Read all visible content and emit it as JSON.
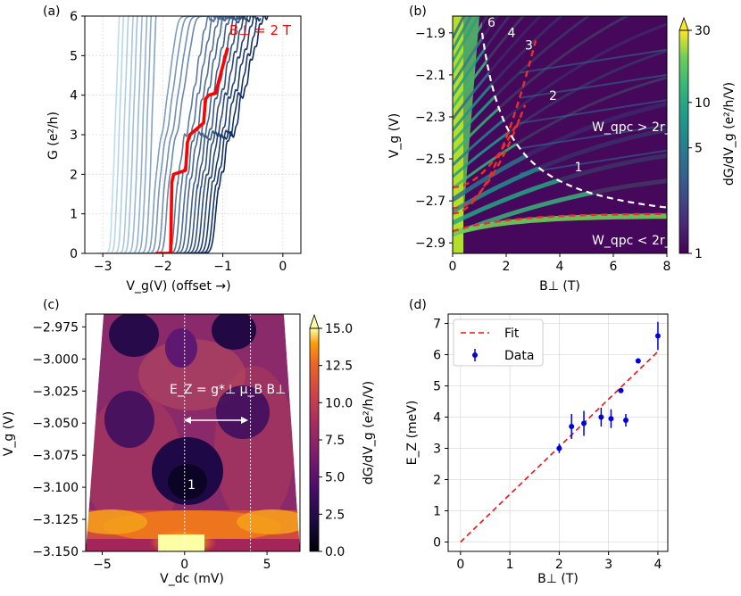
{
  "chart_data": [
    {
      "panel": "(a)",
      "type": "line",
      "xlabel": "V_g(V) (offset →)",
      "ylabel": "G (e²/h)",
      "xlim": [
        -3.3,
        0.3
      ],
      "ylim": [
        0,
        6
      ],
      "xticks": [
        "−3",
        "−2",
        "−1",
        "0"
      ],
      "xtick_values": [
        -3,
        -2,
        -1,
        0
      ],
      "yticks": [
        "0",
        "1",
        "2",
        "3",
        "4",
        "5",
        "6"
      ],
      "ytick_values": [
        0,
        1,
        2,
        3,
        4,
        5,
        6
      ],
      "annotation": "B⊥ = 2 T",
      "highlight_color": "#ff0000",
      "curve_offsets": [
        -2.85,
        -2.78,
        -2.7,
        -2.62,
        -2.55,
        -2.47,
        -2.39,
        -2.32,
        -2.24,
        -2.16,
        -2.09,
        -2.01,
        -1.94,
        -1.87,
        -1.8,
        -1.73,
        -1.66,
        -1.6,
        -1.53,
        -1.47,
        -1.41,
        -1.35,
        -1.29,
        -1.23,
        -1.17,
        -1.12
      ],
      "highlight_index": 13
    },
    {
      "panel": "(b)",
      "type": "heatmap",
      "xlabel": "B⊥ (T)",
      "ylabel": "V_g (V)",
      "xlim": [
        0,
        8
      ],
      "ylim": [
        -2.95,
        -1.82
      ],
      "xticks": [
        "0",
        "2",
        "4",
        "6",
        "8"
      ],
      "xtick_values": [
        0,
        2,
        4,
        6,
        8
      ],
      "yticks": [
        "−1.9",
        "−2.1",
        "−2.3",
        "−2.5",
        "−2.7",
        "−2.9"
      ],
      "ytick_values": [
        -1.9,
        -2.1,
        -2.3,
        -2.5,
        -2.7,
        -2.9
      ],
      "colorbar_label": "dG/dV_g (e²/h/V)",
      "colorbar_ticks": [
        "1",
        "5",
        "10",
        "30"
      ],
      "colorbar_scale": "log",
      "level_labels": [
        "6",
        "4",
        "3",
        "2",
        "1"
      ],
      "region_labels": [
        "W_qpc > 2r_c",
        "W_qpc < 2r_c"
      ],
      "boundary_color": "#ffffff",
      "fit_color": "#e8312a"
    },
    {
      "panel": "(c)",
      "type": "heatmap",
      "xlabel": "V_dc (mV)",
      "ylabel": "V_g (V)",
      "xlim": [
        -6,
        7
      ],
      "ylim": [
        -3.15,
        -2.965
      ],
      "xticks": [
        "−5",
        "0",
        "5"
      ],
      "xtick_values": [
        -5,
        0,
        5
      ],
      "yticks": [
        "−2.975",
        "−3.000",
        "−3.025",
        "−3.050",
        "−3.075",
        "−3.100",
        "−3.125",
        "−3.150"
      ],
      "ytick_values": [
        -2.975,
        -3.0,
        -3.025,
        -3.05,
        -3.075,
        -3.1,
        -3.125,
        -3.15
      ],
      "colorbar_label": "dG/dV_g (e²/h/V)",
      "colorbar_ticks": [
        "0.0",
        "2.5",
        "5.0",
        "7.5",
        "10.0",
        "12.5",
        "15.0"
      ],
      "colorbar_tick_values": [
        0,
        2.5,
        5,
        7.5,
        10,
        12.5,
        15
      ],
      "annotation": "E_Z = g*⊥ μ_B B⊥",
      "plateau_label": "1",
      "marker_lines_mV": [
        0,
        4
      ]
    },
    {
      "panel": "(d)",
      "type": "scatter",
      "xlabel": "B⊥ (T)",
      "ylabel": "E_Z (meV)",
      "xlim": [
        -0.25,
        4.2
      ],
      "ylim": [
        -0.3,
        7.3
      ],
      "xticks": [
        "0",
        "1",
        "2",
        "3",
        "4"
      ],
      "xtick_values": [
        0,
        1,
        2,
        3,
        4
      ],
      "yticks": [
        "0",
        "1",
        "2",
        "3",
        "4",
        "5",
        "6",
        "7"
      ],
      "ytick_values": [
        0,
        1,
        2,
        3,
        4,
        5,
        6,
        7
      ],
      "legend": [
        "Fit",
        "Data"
      ],
      "legend_position": "top-left",
      "data_color": "#0000dd",
      "fit_color": "#ee1111",
      "x": [
        2.0,
        2.25,
        2.5,
        2.85,
        3.05,
        3.25,
        3.35,
        3.6,
        4.0
      ],
      "y": [
        3.0,
        3.7,
        3.8,
        4.0,
        3.95,
        4.85,
        3.9,
        5.8,
        6.6
      ],
      "yerr": [
        0.15,
        0.4,
        0.4,
        0.3,
        0.3,
        0.08,
        0.2,
        0.08,
        0.45
      ],
      "fit": {
        "x": [
          0,
          4.0
        ],
        "y": [
          0,
          6.1
        ]
      }
    }
  ]
}
